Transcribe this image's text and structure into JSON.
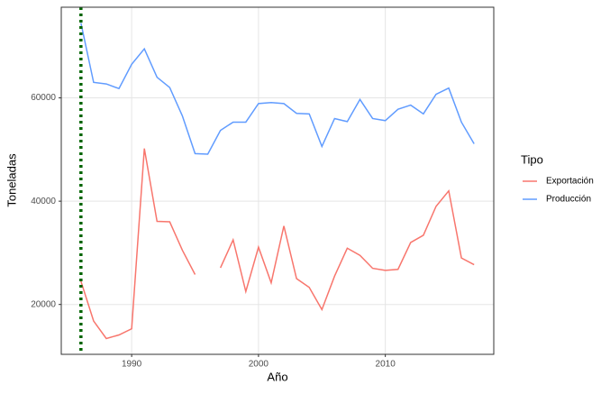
{
  "chart_data": {
    "type": "line",
    "x": [
      1986,
      1987,
      1988,
      1989,
      1990,
      1991,
      1992,
      1993,
      1994,
      1995,
      1996,
      1997,
      1998,
      1999,
      2000,
      2001,
      2002,
      2003,
      2004,
      2005,
      2006,
      2007,
      2008,
      2009,
      2010,
      2011,
      2012,
      2013,
      2014,
      2015,
      2016,
      2017
    ],
    "series": [
      {
        "name": "Exportación",
        "color": "#f8766d",
        "values": [
          24500,
          16800,
          13400,
          14100,
          15300,
          50200,
          36100,
          36000,
          30500,
          25800,
          null,
          27100,
          32500,
          22500,
          31100,
          24200,
          35200,
          25000,
          23300,
          19000,
          25500,
          30900,
          29500,
          27000,
          26600,
          26800,
          32000,
          33400,
          39000,
          42000,
          29000,
          27700
        ]
      },
      {
        "name": "Producción",
        "color": "#619cff",
        "values": [
          74500,
          63000,
          62700,
          61800,
          66500,
          69500,
          64000,
          62000,
          56500,
          49200,
          49100,
          53700,
          55300,
          55300,
          58900,
          59100,
          58900,
          57000,
          56900,
          50600,
          56000,
          55400,
          59700,
          56000,
          55600,
          57800,
          58600,
          56900,
          60700,
          61900,
          55300,
          51100
        ]
      }
    ],
    "x_label": "Año",
    "y_label": "Toneladas",
    "legend_title": "Tipo",
    "xlim": [
      1984.45,
      2018.55
    ],
    "xticks": [
      1990,
      2000,
      2010
    ],
    "ylim": [
      10345,
      77555
    ],
    "yticks": [
      20000,
      40000,
      60000
    ],
    "vline": {
      "value": 1986,
      "color": "#006400"
    },
    "grid": true,
    "legend_position": "right"
  }
}
